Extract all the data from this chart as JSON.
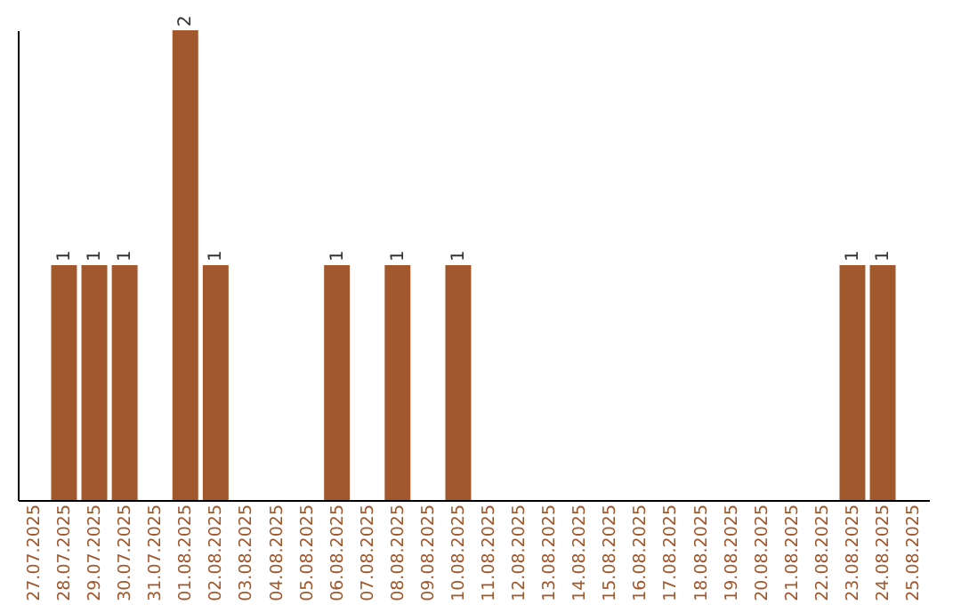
{
  "chart_data": {
    "type": "bar",
    "categories": [
      "27.07.2025",
      "28.07.2025",
      "29.07.2025",
      "30.07.2025",
      "31.07.2025",
      "01.08.2025",
      "02.08.2025",
      "03.08.2025",
      "04.08.2025",
      "05.08.2025",
      "06.08.2025",
      "07.08.2025",
      "08.08.2025",
      "09.08.2025",
      "10.08.2025",
      "11.08.2025",
      "12.08.2025",
      "13.08.2025",
      "14.08.2025",
      "15.08.2025",
      "16.08.2025",
      "17.08.2025",
      "18.08.2025",
      "19.08.2025",
      "20.08.2025",
      "21.08.2025",
      "22.08.2025",
      "23.08.2025",
      "24.08.2025",
      "25.08.2025"
    ],
    "values": [
      0,
      1,
      1,
      1,
      0,
      2,
      1,
      0,
      0,
      0,
      1,
      0,
      1,
      0,
      1,
      0,
      0,
      0,
      0,
      0,
      0,
      0,
      0,
      0,
      0,
      0,
      0,
      1,
      1,
      0
    ],
    "value_labels": [
      null,
      "1",
      "1",
      "1",
      null,
      "2",
      "1",
      null,
      null,
      null,
      "1",
      null,
      "1",
      null,
      "1",
      null,
      null,
      null,
      null,
      null,
      null,
      null,
      null,
      null,
      null,
      null,
      null,
      "1",
      "1",
      null
    ],
    "color": "#a0582c",
    "ylim": [
      0,
      2
    ],
    "tick_labels": "x",
    "grid": false
  }
}
